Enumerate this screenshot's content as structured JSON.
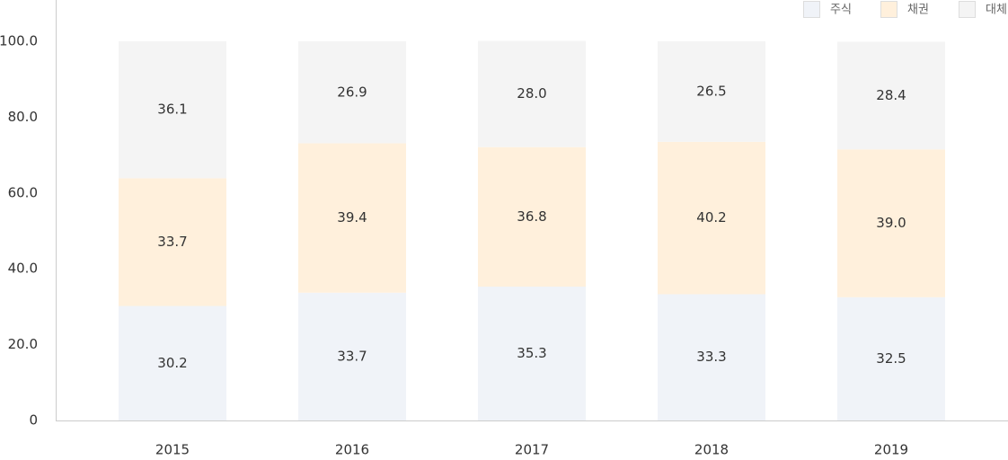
{
  "chart_data": {
    "type": "bar",
    "stacked": true,
    "categories": [
      "2015",
      "2016",
      "2017",
      "2018",
      "2019"
    ],
    "series": [
      {
        "name": "주식",
        "color": "#f0f3f8",
        "values": [
          30.2,
          33.7,
          35.3,
          33.3,
          32.5
        ]
      },
      {
        "name": "채권",
        "color": "#fff0dc",
        "values": [
          33.7,
          39.4,
          36.8,
          40.2,
          39.0
        ]
      },
      {
        "name": "대체",
        "color": "#f4f4f4",
        "values": [
          36.1,
          26.9,
          28.0,
          26.5,
          28.4
        ]
      }
    ],
    "ylim": [
      0,
      100
    ],
    "yticks": [
      "0",
      "20.0",
      "40.0",
      "60.0",
      "80.0",
      "100.0"
    ],
    "legend_position": "top-right",
    "grid": false
  }
}
